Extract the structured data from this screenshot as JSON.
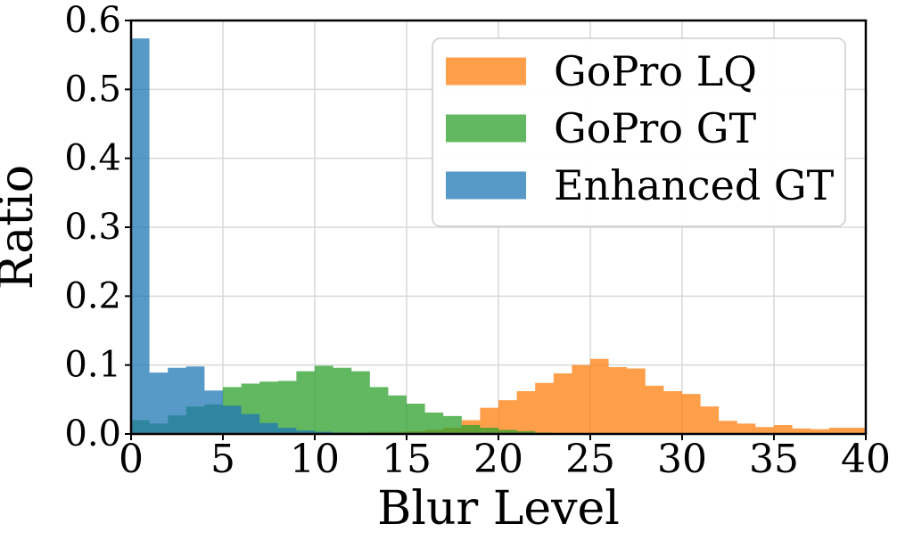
{
  "figure": {
    "background": "#ffffff",
    "grid_color": "#d8d8d8",
    "spine_color": "#000000",
    "tick_color": "#000000"
  },
  "chart_data": {
    "type": "histogram",
    "title": "",
    "xlabel": "Blur Level",
    "ylabel": "Ratio",
    "xlim": [
      0,
      40
    ],
    "ylim": [
      0,
      0.6
    ],
    "xticks": [
      0,
      5,
      10,
      15,
      20,
      25,
      30,
      35,
      40
    ],
    "xtick_labels": [
      "0",
      "5",
      "10",
      "15",
      "20",
      "25",
      "30",
      "35",
      "40"
    ],
    "yticks": [
      0.0,
      0.1,
      0.2,
      0.3,
      0.4,
      0.5,
      0.6
    ],
    "ytick_labels": [
      "0.0",
      "0.1",
      "0.2",
      "0.3",
      "0.4",
      "0.5",
      "0.6"
    ],
    "grid": true,
    "bin_start": 0,
    "bin_width": 1,
    "opacity": 0.75,
    "legend": {
      "position": "upper right",
      "entries": [
        "GoPro LQ",
        "GoPro GT",
        "Enhanced GT"
      ]
    },
    "series": [
      {
        "name": "GoPro LQ",
        "color": "#ff7f0e",
        "values": [
          0,
          0,
          0,
          0,
          0,
          0,
          0,
          0,
          0,
          0,
          0,
          0,
          0.002,
          0.003,
          0.003,
          0.004,
          0.006,
          0.009,
          0.02,
          0.038,
          0.049,
          0.062,
          0.074,
          0.088,
          0.1,
          0.109,
          0.097,
          0.095,
          0.07,
          0.062,
          0.058,
          0.04,
          0.019,
          0.015,
          0.01,
          0.013,
          0.008,
          0.007,
          0.009,
          0.009
        ]
      },
      {
        "name": "GoPro GT",
        "color": "#2ca02c",
        "values": [
          0.02,
          0.015,
          0.027,
          0.04,
          0.043,
          0.068,
          0.073,
          0.076,
          0.077,
          0.091,
          0.099,
          0.096,
          0.091,
          0.068,
          0.056,
          0.044,
          0.031,
          0.026,
          0.013,
          0.009,
          0.006,
          0.004,
          0.002,
          0.001,
          0,
          0,
          0,
          0,
          0,
          0,
          0,
          0,
          0,
          0,
          0,
          0,
          0,
          0,
          0,
          0
        ]
      },
      {
        "name": "Enhanced GT",
        "color": "#1f77b4",
        "values": [
          0.574,
          0.089,
          0.096,
          0.098,
          0.063,
          0.041,
          0.029,
          0.016,
          0.009,
          0.005,
          0.003,
          0.002,
          0,
          0,
          0,
          0,
          0,
          0,
          0,
          0,
          0,
          0,
          0,
          0,
          0,
          0,
          0,
          0,
          0,
          0,
          0,
          0,
          0,
          0,
          0,
          0,
          0,
          0,
          0,
          0
        ]
      }
    ]
  }
}
